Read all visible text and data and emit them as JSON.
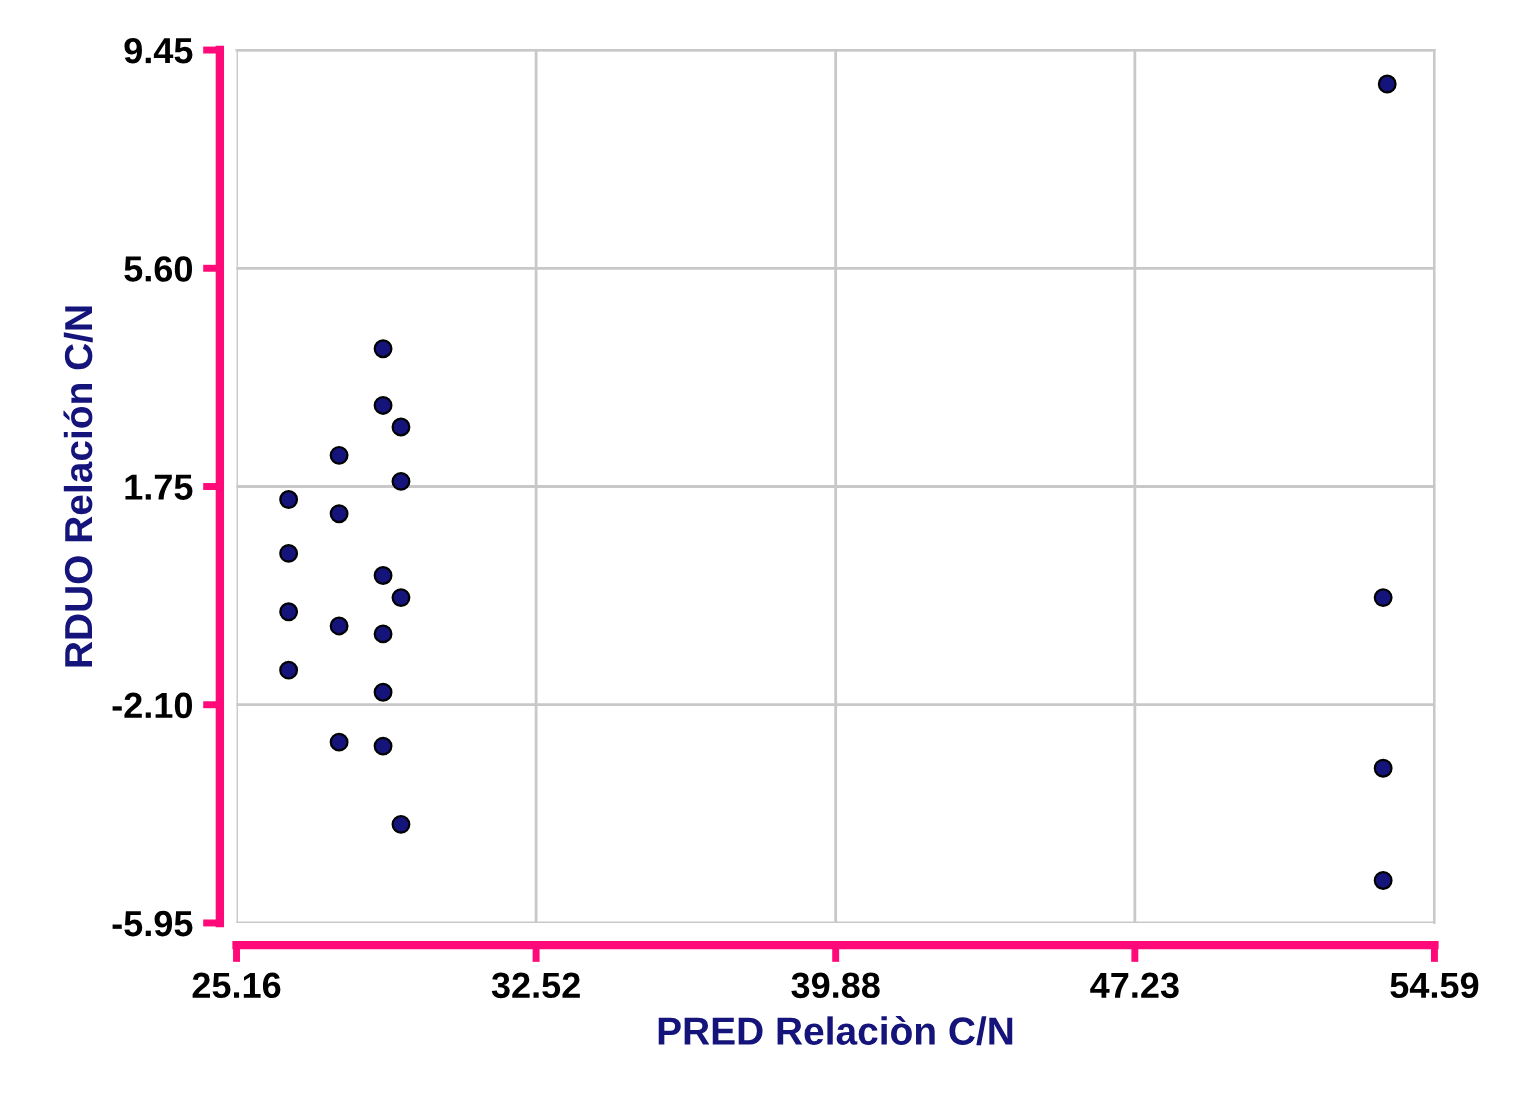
{
  "chart_data": {
    "type": "scatter",
    "xlabel": "PRED Relaciòn C/N",
    "ylabel": "RDUO Relación C/N",
    "xlim": [
      25.16,
      54.59
    ],
    "xticks": [
      25.16,
      32.52,
      39.88,
      47.23,
      54.59
    ],
    "ylim": [
      -5.95,
      9.45
    ],
    "yticks": [
      -5.95,
      {
        "value": -2.1,
        "label": "-2.10"
      },
      1.75,
      {
        "value": 5.6,
        "label": "5.60"
      },
      9.45
    ],
    "grid": true,
    "marker": "circle",
    "series": [
      {
        "color": "#14147a",
        "x": [
          53.43,
          53.33,
          53.33,
          53.33,
          28.76,
          28.76,
          29.2,
          27.68,
          29.2,
          26.44,
          27.68,
          26.44,
          28.76,
          29.2,
          26.44,
          27.68,
          28.76,
          26.44,
          28.76,
          27.68,
          28.76,
          29.2
        ],
        "values": [
          8.85,
          -0.21,
          -3.22,
          -5.2,
          4.18,
          3.18,
          2.8,
          2.3,
          1.84,
          1.52,
          1.27,
          0.57,
          0.18,
          -0.21,
          -0.46,
          -0.71,
          -0.85,
          -1.49,
          -1.88,
          -2.76,
          -2.83,
          -4.21
        ]
      }
    ]
  }
}
